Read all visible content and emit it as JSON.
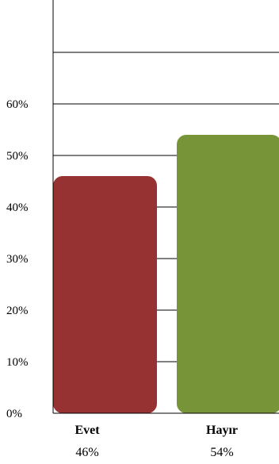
{
  "chart_data": {
    "type": "bar",
    "categories": [
      "Evet",
      "Hayır"
    ],
    "values": [
      46,
      54
    ],
    "value_labels": [
      "46%",
      "54%"
    ],
    "ylim": [
      0,
      70
    ],
    "yticks": [
      0,
      10,
      20,
      30,
      40,
      50,
      60,
      70
    ],
    "ytick_labels": [
      "0%",
      "10%",
      "20%",
      "30%",
      "40%",
      "50%",
      "60%",
      ""
    ],
    "grid": true,
    "title": "",
    "xlabel": "",
    "ylabel": "",
    "colors": [
      "#963232",
      "#779438"
    ]
  }
}
